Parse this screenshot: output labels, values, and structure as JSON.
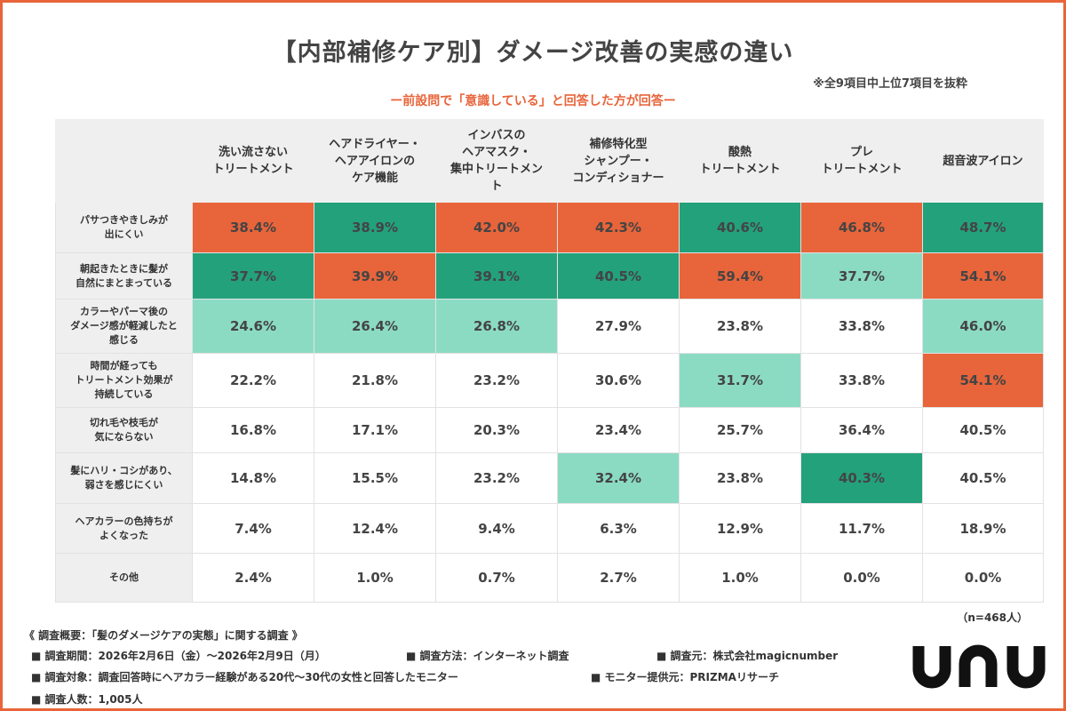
{
  "title": "【内部補修ケア別】ダメージ改善の実感の違い",
  "note": "※全9項目中上位7項目を抜粋",
  "subtitle": "ー前設問で「意識している」と回答した方が回答ー",
  "n_note": "（n=468人）",
  "colors": {
    "orange": "#e8643a",
    "dark_green": "#23a17b",
    "light_green": "#8bdbc3"
  },
  "chart_data": {
    "type": "table",
    "columns": [
      "洗い流さない\nトリートメント",
      "ヘアドライヤー・\nヘアアイロンの\nケア機能",
      "インバスの\nヘアマスク・\n集中トリートメン\nト",
      "補修特化型\nシャンプー・\nコンディショナー",
      "酸熱\nトリートメント",
      "プレ\nトリートメント",
      "超音波アイロン"
    ],
    "rows": [
      {
        "label": "パサつきやきしみが\n出にくい",
        "values": [
          "38.4%",
          "38.9%",
          "42.0%",
          "42.3%",
          "40.6%",
          "46.8%",
          "48.7%"
        ],
        "highlight": [
          "orange",
          "dark_green",
          "orange",
          "orange",
          "dark_green",
          "orange",
          "dark_green"
        ]
      },
      {
        "label": "朝起きたときに髪が\n自然にまとまっている",
        "values": [
          "37.7%",
          "39.9%",
          "39.1%",
          "40.5%",
          "59.4%",
          "37.7%",
          "54.1%"
        ],
        "highlight": [
          "dark_green",
          "orange",
          "dark_green",
          "dark_green",
          "orange",
          "light_green",
          "orange"
        ]
      },
      {
        "label": "カラーやパーマ後の\nダメージ感が軽減したと\n感じる",
        "values": [
          "24.6%",
          "26.4%",
          "26.8%",
          "27.9%",
          "23.8%",
          "33.8%",
          "46.0%"
        ],
        "highlight": [
          "light_green",
          "light_green",
          "light_green",
          "",
          "",
          "",
          "light_green"
        ]
      },
      {
        "label": "時間が経っても\nトリートメント効果が\n持続している",
        "values": [
          "22.2%",
          "21.8%",
          "23.2%",
          "30.6%",
          "31.7%",
          "33.8%",
          "54.1%"
        ],
        "highlight": [
          "",
          "",
          "",
          "",
          "light_green",
          "",
          "orange"
        ]
      },
      {
        "label": "切れ毛や枝毛が\n気にならない",
        "values": [
          "16.8%",
          "17.1%",
          "20.3%",
          "23.4%",
          "25.7%",
          "36.4%",
          "40.5%"
        ],
        "highlight": [
          "",
          "",
          "",
          "",
          "",
          "",
          ""
        ]
      },
      {
        "label": "髪にハリ・コシがあり、\n弱さを感じにくい",
        "values": [
          "14.8%",
          "15.5%",
          "23.2%",
          "32.4%",
          "23.8%",
          "40.3%",
          "40.5%"
        ],
        "highlight": [
          "",
          "",
          "",
          "light_green",
          "",
          "dark_green",
          ""
        ]
      },
      {
        "label": "ヘアカラーの色持ちが\nよくなった",
        "values": [
          "7.4%",
          "12.4%",
          "9.4%",
          "6.3%",
          "12.9%",
          "11.7%",
          "18.9%"
        ],
        "highlight": [
          "",
          "",
          "",
          "",
          "",
          "",
          ""
        ]
      },
      {
        "label": "その他",
        "values": [
          "2.4%",
          "1.0%",
          "0.7%",
          "2.7%",
          "1.0%",
          "0.0%",
          "0.0%"
        ],
        "highlight": [
          "",
          "",
          "",
          "",
          "",
          "",
          ""
        ]
      }
    ]
  },
  "footer": {
    "heading": "《 調査概要：「髪のダメージケアの実態」に関する調査 》",
    "period": "■ 調査期間：2026年2月6日（金）〜2026年2月9日（月）",
    "method": "■ 調査方法：インターネット調査",
    "source": "■ 調査元：株式会社magicnumber",
    "target": "■ 調査対象：調査回答時にヘアカラー経験がある20代〜30代の女性と回答したモニター",
    "provider": "■ モニター提供元：PRIZMAリサーチ",
    "count": "■ 調査人数：1,005人"
  },
  "logo": {
    "text": "unu",
    "icon": "unu-logo"
  }
}
